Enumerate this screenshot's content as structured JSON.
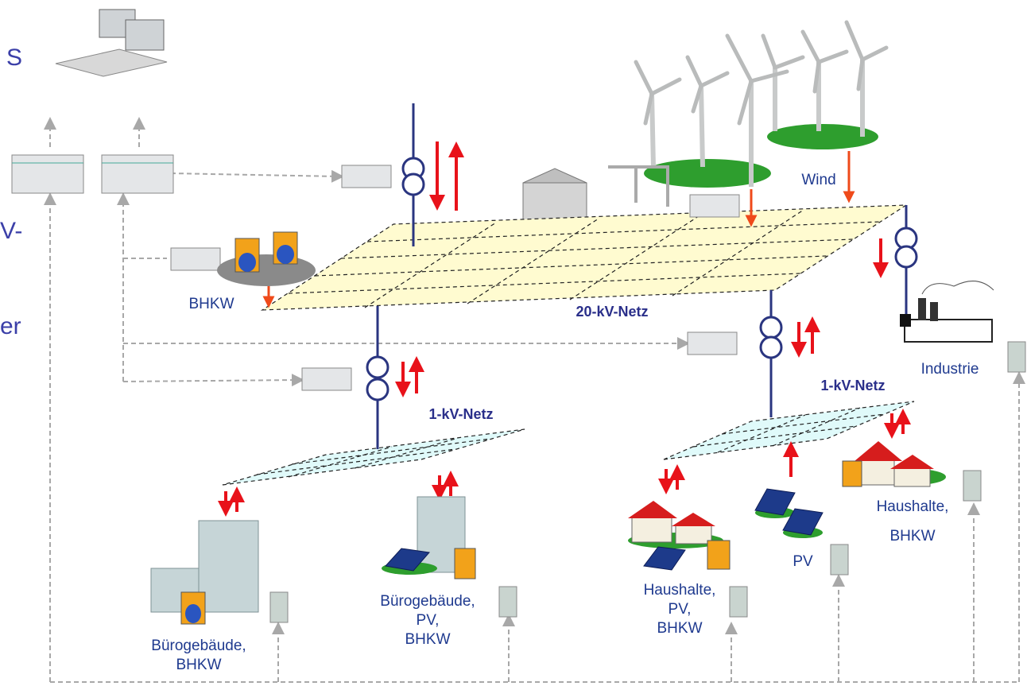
{
  "edge_text": [
    "S",
    "V-",
    "er"
  ],
  "grids": [
    {
      "label": "20-kV-Netz"
    },
    {
      "label": "1-kV-Netz"
    },
    {
      "label": "1-kV-Netz"
    }
  ],
  "nodes": [
    {
      "label": [
        "BHKW"
      ]
    },
    {
      "label": [
        "Wind"
      ]
    },
    {
      "label": [
        "Industrie"
      ]
    },
    {
      "label": [
        "Bürogebäude,",
        "BHKW"
      ]
    },
    {
      "label": [
        "Bürogebäude,",
        "PV,",
        "BHKW"
      ]
    },
    {
      "label": [
        "Haushalte,",
        "PV,",
        "BHKW"
      ]
    },
    {
      "label": [
        "PV"
      ]
    },
    {
      "label": [
        "Haushalte,",
        "BHKW"
      ]
    }
  ]
}
